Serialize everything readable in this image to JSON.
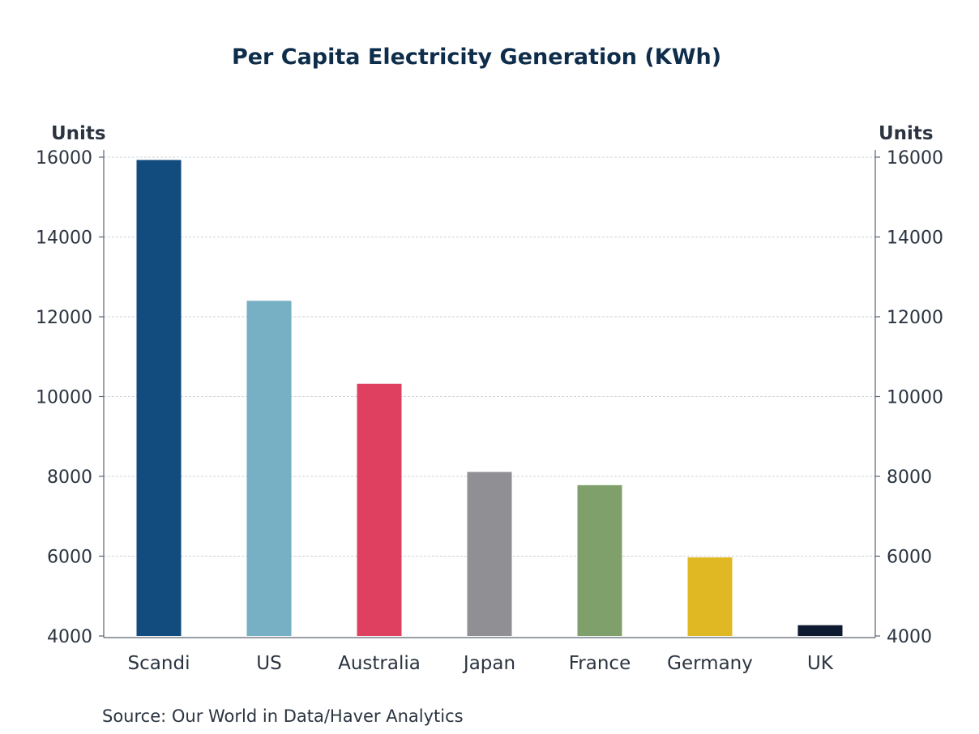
{
  "chart_data": {
    "type": "bar",
    "title": "Per Capita Electricity Generation (KWh)",
    "left_axis_label": "Units",
    "right_axis_label": "Units",
    "categories": [
      "Scandi",
      "US",
      "Australia",
      "Japan",
      "France",
      "Germany",
      "UK"
    ],
    "values": [
      15930,
      12400,
      10320,
      8110,
      7780,
      5970,
      4270
    ],
    "colors": [
      "#124b7e",
      "#77afc4",
      "#e04060",
      "#8f8f94",
      "#7fa06a",
      "#e0b823",
      "#0d1a30"
    ],
    "ylim": [
      4000,
      16000
    ],
    "yticks": [
      "4000",
      "6000",
      "8000",
      "10000",
      "12000",
      "14000",
      "16000"
    ],
    "grid": true,
    "legend": "none"
  },
  "source": "Source:  Our World in Data/Haver Analytics"
}
